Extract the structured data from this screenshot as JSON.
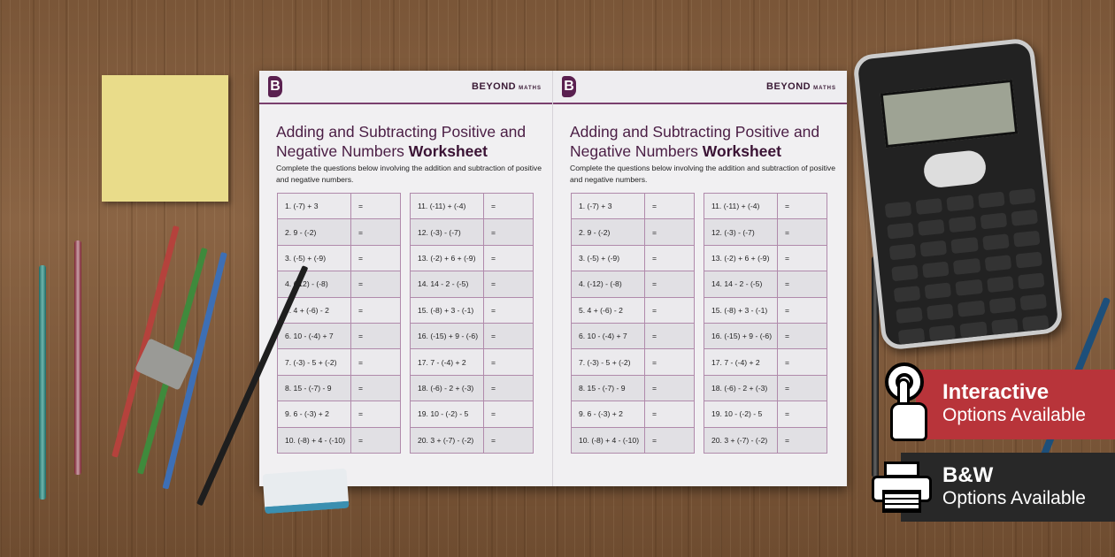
{
  "worksheet": {
    "brand": "BEYOND",
    "brand_sub": "MATHS",
    "logo": "B",
    "title": "Adding and Subtracting Positive and Negative Numbers",
    "title_bold": "Worksheet",
    "instructions": "Complete the questions below involving the addition and subtraction of positive and negative numbers.",
    "equals": "=",
    "questions": [
      "1.  (-7) + 3",
      "2.  9 - (-2)",
      "3.  (-5) + (-9)",
      "4.  (-12) - (-8)",
      "5.  4 + (-6) - 2",
      "6.  10 - (-4) + 7",
      "7.  (-3) - 5 + (-2)",
      "8.  15 - (-7) - 9",
      "9.  6 - (-3) + 2",
      "10.  (-8) + 4 - (-10)",
      "11.  (-11) + (-4)",
      "12.  (-3) - (-7)",
      "13.  (-2) + 6 + (-9)",
      "14.  14 - 2 - (-5)",
      "15.  (-8) + 3 - (-1)",
      "16.  (-15) + 9 - (-6)",
      "17.  7 - (-4) + 2",
      "18.  (-6) - 2 + (-3)",
      "19.  10 - (-2) - 5",
      "20.  3 + (-7) - (-2)"
    ]
  },
  "badges": {
    "interactive": {
      "title": "Interactive",
      "subtitle": "Options Available",
      "icon": "touch-hand-icon",
      "color": "#b8343a"
    },
    "bw": {
      "title": "B&W",
      "subtitle": "Options Available",
      "icon": "printer-icon",
      "color": "#282828"
    }
  }
}
